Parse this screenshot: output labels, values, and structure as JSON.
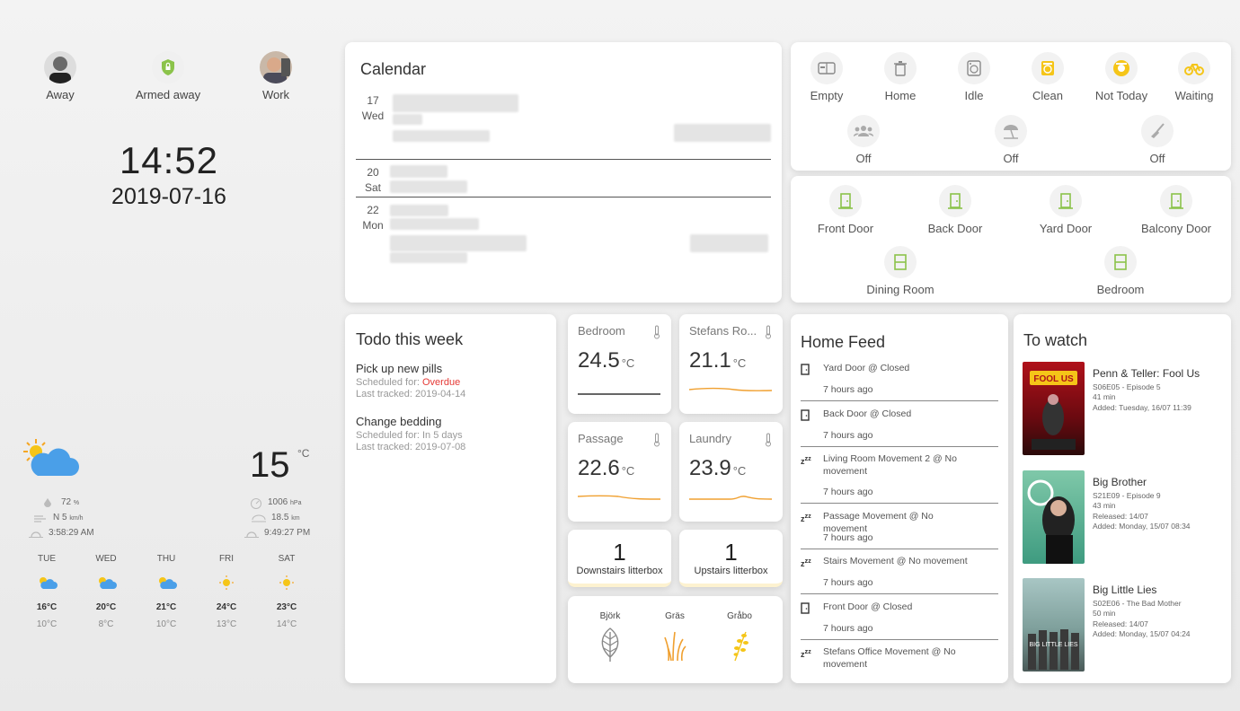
{
  "people": [
    {
      "label": "Away"
    },
    {
      "label": "Armed away"
    },
    {
      "label": "Work"
    }
  ],
  "clock": {
    "time": "14:52",
    "date": "2019-07-16"
  },
  "weather": {
    "temp": "15",
    "temp_unit": "°C",
    "humidity": "72",
    "humidity_unit": "%",
    "wind": "N 5",
    "wind_unit": "km/h",
    "sunrise": "3:58:29 AM",
    "pressure": "1006",
    "pressure_unit": "hPa",
    "visibility": "18.5",
    "visibility_unit": "km",
    "sunset": "9:49:27 PM",
    "forecast": [
      {
        "day": "TUE",
        "hi": "16°C",
        "lo": "10°C",
        "icon": "partly-cloudy"
      },
      {
        "day": "WED",
        "hi": "20°C",
        "lo": "8°C",
        "icon": "partly-cloudy"
      },
      {
        "day": "THU",
        "hi": "21°C",
        "lo": "10°C",
        "icon": "partly-cloudy"
      },
      {
        "day": "FRI",
        "hi": "24°C",
        "lo": "13°C",
        "icon": "sunny"
      },
      {
        "day": "SAT",
        "hi": "23°C",
        "lo": "14°C",
        "icon": "sunny"
      }
    ]
  },
  "calendar": {
    "title": "Calendar",
    "days": [
      {
        "day": "17",
        "weekday": "Wed"
      },
      {
        "day": "20",
        "weekday": "Sat"
      },
      {
        "day": "22",
        "weekday": "Mon"
      }
    ]
  },
  "status_tiles": {
    "row1": [
      "Empty",
      "Home",
      "Idle",
      "Clean",
      "Not Today",
      "Waiting"
    ],
    "row2": [
      "Off",
      "Off",
      "Off"
    ]
  },
  "doors": {
    "row1": [
      "Front Door",
      "Back Door",
      "Yard Door",
      "Balcony Door"
    ],
    "row2": [
      "Dining Room",
      "Bedroom"
    ]
  },
  "todo": {
    "title": "Todo this week",
    "items": [
      {
        "name": "Pick up new pills",
        "sched_label": "Scheduled for: ",
        "sched_value": "Overdue",
        "tracked": "Last tracked: 2019-04-14"
      },
      {
        "name": "Change bedding",
        "sched_label": "Scheduled for: ",
        "sched_value": "In 5 days",
        "tracked": "Last tracked: 2019-07-08"
      }
    ]
  },
  "sensors": [
    {
      "name": "Bedroom",
      "value": "24.5",
      "unit": "°C"
    },
    {
      "name": "Stefans Ro...",
      "value": "21.1",
      "unit": "°C"
    },
    {
      "name": "Passage",
      "value": "22.6",
      "unit": "°C"
    },
    {
      "name": "Laundry",
      "value": "23.9",
      "unit": "°C"
    }
  ],
  "counters": [
    {
      "value": "1",
      "label": "Downstairs litterbox"
    },
    {
      "value": "1",
      "label": "Upstairs litterbox"
    }
  ],
  "pollen": [
    {
      "label": "Björk"
    },
    {
      "label": "Gräs"
    },
    {
      "label": "Gråbo"
    }
  ],
  "feed": {
    "title": "Home Feed",
    "items": [
      {
        "icon": "door-icon",
        "text": "Yard Door @ Closed",
        "time": "7 hours ago"
      },
      {
        "icon": "door-icon",
        "text": "Back Door @ Closed",
        "time": "7 hours ago"
      },
      {
        "icon": "sleep-icon",
        "text": "Living Room Movement 2 @ No movement",
        "time": "7 hours ago"
      },
      {
        "icon": "sleep-icon",
        "text": "Passage Movement @ No movement",
        "time": "7 hours ago"
      },
      {
        "icon": "sleep-icon",
        "text": "Stairs Movement @ No movement",
        "time": "7 hours ago"
      },
      {
        "icon": "door-icon",
        "text": "Front Door @ Closed",
        "time": "7 hours ago"
      },
      {
        "icon": "sleep-icon",
        "text": "Stefans Office Movement @ No movement",
        "time": ""
      }
    ]
  },
  "watch": {
    "title": "To watch",
    "items": [
      {
        "title": "Penn & Teller: Fool Us",
        "episode": "S06E05 - Episode 5",
        "length": "41 min",
        "extra": "",
        "added": "Added: Tuesday, 16/07 11:39"
      },
      {
        "title": "Big Brother",
        "episode": "S21E09 - Episode 9",
        "length": "43 min",
        "extra": "Released: 14/07",
        "added": "Added: Monday, 15/07 08:34"
      },
      {
        "title": "Big Little Lies",
        "episode": "S02E06 - The Bad Mother",
        "length": "50 min",
        "extra": "Released: 14/07",
        "added": "Added: Monday, 15/07 04:24"
      }
    ]
  },
  "colors": {
    "accent_green": "#8bc34a",
    "accent_yellow": "#f5c518",
    "overdue": "#e53935"
  }
}
